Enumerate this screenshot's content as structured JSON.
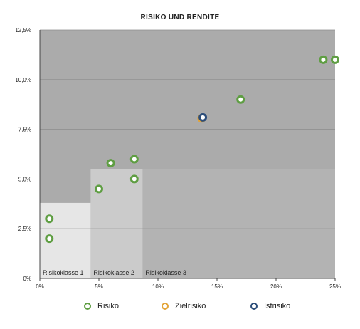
{
  "chart_data": {
    "type": "scatter",
    "title": "RISIKO UND RENDITE",
    "xlabel": "",
    "ylabel": "",
    "xlim": [
      0,
      25
    ],
    "ylim": [
      0,
      12.5
    ],
    "x_ticks": [
      "0%",
      "5%",
      "10%",
      "15%",
      "20%",
      "25%"
    ],
    "y_ticks": [
      "0%",
      "2,5%",
      "5,0%",
      "7,5%",
      "10,0%",
      "12,5%"
    ],
    "grid": true,
    "legend_position": "bottom",
    "zones": [
      {
        "label": "Risikoklasse 1",
        "x_max": 4.3,
        "y_max": 3.8,
        "color": "#e6e6e6"
      },
      {
        "label": "Risikoklasse 2",
        "x_max": 8.7,
        "y_max": 5.5,
        "color": "#cbcbcb"
      },
      {
        "label": "Risikoklasse 3",
        "x_max": 25,
        "y_max": 5.5,
        "color": "#b3b3b3"
      }
    ],
    "background_color": "#ababab",
    "series": [
      {
        "name": "Risiko",
        "color": "#5f9e43",
        "points": [
          [
            0.8,
            3.0
          ],
          [
            0.8,
            2.0
          ],
          [
            5.0,
            4.5
          ],
          [
            6.0,
            5.8
          ],
          [
            8.0,
            6.0
          ],
          [
            8.0,
            5.0
          ],
          [
            17.0,
            9.0
          ],
          [
            24.0,
            11.0
          ],
          [
            25.0,
            11.0
          ]
        ]
      },
      {
        "name": "Zielrisiko",
        "color": "#e3a53a",
        "points": [
          [
            13.7,
            8.05
          ]
        ]
      },
      {
        "name": "Istrisiko",
        "color": "#2d4e7a",
        "points": [
          [
            13.8,
            8.1
          ]
        ]
      }
    ]
  }
}
